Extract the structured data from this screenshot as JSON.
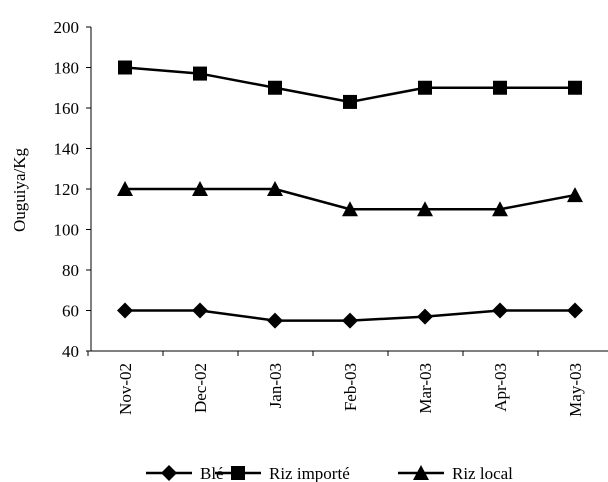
{
  "chart_data": {
    "type": "line",
    "title": "",
    "xlabel": "",
    "ylabel": "Ouguiya/Kg",
    "categories": [
      "Nov-02",
      "Dec-02",
      "Jan-03",
      "Feb-03",
      "Mar-03",
      "Apr-03",
      "May-03"
    ],
    "ylim": [
      40,
      200
    ],
    "yticks": [
      40,
      60,
      80,
      100,
      120,
      140,
      160,
      180,
      200
    ],
    "grid": false,
    "legend_position": "bottom",
    "series": [
      {
        "name": "Blé",
        "marker": "diamond",
        "color": "#000000",
        "values": [
          60,
          60,
          55,
          55,
          57,
          60,
          60
        ]
      },
      {
        "name": "Riz importé",
        "marker": "square",
        "color": "#000000",
        "values": [
          180,
          177,
          170,
          163,
          170,
          170,
          170
        ]
      },
      {
        "name": "Riz local",
        "marker": "triangle",
        "color": "#000000",
        "values": [
          120,
          120,
          120,
          110,
          110,
          110,
          117
        ]
      }
    ]
  }
}
